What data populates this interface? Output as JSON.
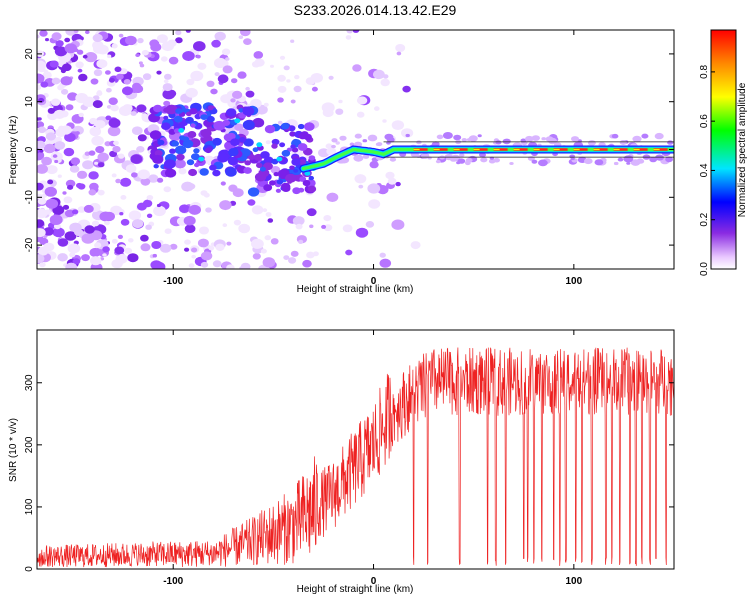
{
  "title": "S233.2026.014.13.42.E29",
  "chart_data": [
    {
      "type": "heatmap",
      "name": "spectrogram",
      "xlabel": "Height of straight line (km)",
      "ylabel": "Frequency (Hz)",
      "xlim": [
        -168,
        150
      ],
      "ylim": [
        -25,
        25
      ],
      "xticks": [
        "-100",
        "0",
        "100"
      ],
      "xtick_values": [
        -100,
        0,
        100
      ],
      "yticks": [
        "20",
        "10",
        "0",
        "-10",
        "-20"
      ],
      "ytick_values": [
        20,
        10,
        0,
        -10,
        -20
      ],
      "ridge": [
        {
          "x": -35,
          "y": -4
        },
        {
          "x": -25,
          "y": -3
        },
        {
          "x": -18,
          "y": -1.5
        },
        {
          "x": -10,
          "y": 0
        },
        {
          "x": 0,
          "y": -0.5
        },
        {
          "x": 5,
          "y": -1
        },
        {
          "x": 10,
          "y": 0
        },
        {
          "x": 20,
          "y": 0
        },
        {
          "x": 150,
          "y": 0
        }
      ],
      "colorbar": {
        "label": "Normalized spectral amplitude",
        "range": [
          0,
          0.97
        ],
        "ticks": [
          "0.0",
          "0.2",
          "0.4",
          "0.6",
          "0.8"
        ],
        "tick_values": [
          0.0,
          0.2,
          0.4,
          0.6,
          0.8
        ]
      }
    },
    {
      "type": "line",
      "name": "snr",
      "xlabel": "Height of straight line (km)",
      "ylabel": "SNR (10 * v/v)",
      "xlim": [
        -168,
        150
      ],
      "ylim": [
        0,
        385
      ],
      "xticks": [
        "-100",
        "0",
        "100"
      ],
      "xtick_values": [
        -100,
        0,
        100
      ],
      "yticks": [
        "300",
        "200",
        "100",
        "0"
      ],
      "ytick_values": [
        300,
        200,
        100,
        0
      ],
      "color": "#ee2222",
      "envelope_mean": [
        {
          "x": -168,
          "y": 20
        },
        {
          "x": -80,
          "y": 25
        },
        {
          "x": -60,
          "y": 45
        },
        {
          "x": -40,
          "y": 70
        },
        {
          "x": -20,
          "y": 120
        },
        {
          "x": 0,
          "y": 200
        },
        {
          "x": 10,
          "y": 260
        },
        {
          "x": 20,
          "y": 290
        },
        {
          "x": 30,
          "y": 310
        },
        {
          "x": 150,
          "y": 310
        }
      ],
      "dropouts_x": [
        20,
        27,
        43,
        57,
        61,
        66,
        75,
        77,
        80,
        84,
        90,
        93,
        96,
        101,
        104,
        109,
        116,
        119,
        123,
        128,
        131,
        134,
        138,
        141,
        146
      ]
    }
  ]
}
